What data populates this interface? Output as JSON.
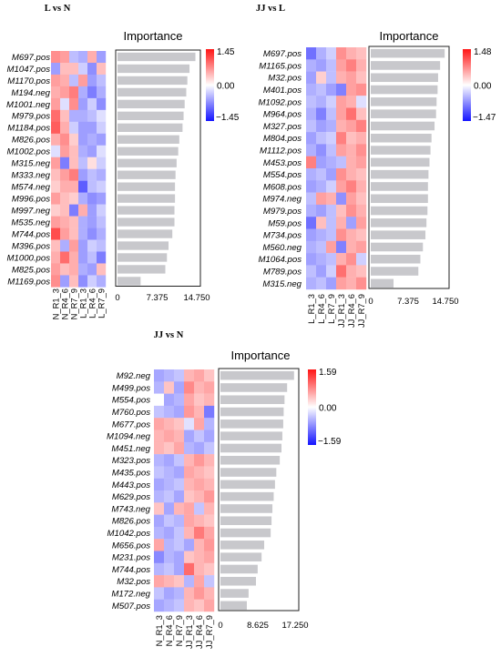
{
  "palette": {
    "neg": "#1414ff",
    "mid": "#ffffff",
    "pos": "#ff1414",
    "bar": "#c8c8cc",
    "frame": "#222222"
  },
  "chart_data": [
    {
      "type": "heatmap",
      "title": "L vs N",
      "importance_label": "Importance",
      "x_ticks": [
        "0",
        "7.375",
        "14.750"
      ],
      "x_max": 14.75,
      "colorbar": {
        "max": 1.45,
        "min": -1.45,
        "labels": [
          "1.45",
          "0.00",
          "−1.45"
        ]
      },
      "samples": [
        "N_R1_3",
        "N_R4_6",
        "N_R7_9",
        "L_R1_3",
        "L_R4_6",
        "L_R7_9"
      ],
      "features": [
        "M697.pos",
        "M1047.pos",
        "M1170.pos",
        "M194.neg",
        "M1001.neg",
        "M979.pos",
        "M1184.pos",
        "M826.pos",
        "M1002.pos",
        "M315.neg",
        "M333.neg",
        "M574.neg",
        "M996.pos",
        "M997.neg",
        "M535.neg",
        "M744.pos",
        "M396.pos",
        "M1000.pos",
        "M825.pos",
        "M1169.pos"
      ],
      "importance": [
        14.5,
        13.4,
        13.0,
        12.8,
        12.5,
        12.3,
        12.1,
        11.5,
        11.3,
        11.0,
        10.8,
        10.7,
        10.7,
        10.6,
        10.6,
        10.2,
        9.5,
        9.2,
        8.9,
        4.3
      ],
      "heat": [
        [
          0.7,
          0.6,
          -0.4,
          -0.5,
          0.5,
          -0.6
        ],
        [
          -0.6,
          0.4,
          0.4,
          -0.3,
          -0.7,
          0.4
        ],
        [
          0.6,
          0.5,
          -0.4,
          0.6,
          -0.6,
          -0.4
        ],
        [
          0.5,
          0.6,
          0.8,
          -0.5,
          -0.8,
          -0.5
        ],
        [
          0.6,
          -0.2,
          0.7,
          -0.6,
          -0.3,
          -0.7
        ],
        [
          0.9,
          0.4,
          -0.5,
          -0.5,
          -0.4,
          -0.2
        ],
        [
          1.0,
          0.5,
          -0.3,
          -0.6,
          -0.6,
          -0.3
        ],
        [
          0.5,
          0.7,
          0.3,
          -0.6,
          -0.5,
          -0.6
        ],
        [
          -0.2,
          0.6,
          0.4,
          -0.5,
          -0.6,
          -0.2
        ],
        [
          0.6,
          -0.8,
          0.4,
          -0.4,
          0.2,
          -0.3
        ],
        [
          0.4,
          0.6,
          0.8,
          -0.6,
          -0.4,
          -0.5
        ],
        [
          0.3,
          0.5,
          0.5,
          -1.0,
          -0.4,
          -0.3
        ],
        [
          0.6,
          0.4,
          0.3,
          -0.5,
          -0.7,
          -0.6
        ],
        [
          0.3,
          0.4,
          -0.8,
          0.5,
          -0.6,
          -0.3
        ],
        [
          0.6,
          0.5,
          0.4,
          -0.5,
          -0.6,
          -0.4
        ],
        [
          1.1,
          0.6,
          0.4,
          -0.5,
          -0.7,
          -0.5
        ],
        [
          0.4,
          -0.5,
          0.6,
          -0.6,
          -0.3,
          -0.4
        ],
        [
          0.5,
          0.9,
          0.5,
          -0.6,
          -0.4,
          -0.8
        ],
        [
          0.6,
          0.4,
          0.5,
          -0.5,
          -0.6,
          0.4
        ],
        [
          0.7,
          -0.6,
          0.4,
          -0.7,
          -0.3,
          -0.5
        ]
      ]
    },
    {
      "type": "heatmap",
      "title": "JJ vs L",
      "importance_label": "Importance",
      "x_ticks": [
        "0",
        "7.375",
        "14.750"
      ],
      "x_max": 14.75,
      "colorbar": {
        "max": 1.48,
        "min": -1.47,
        "labels": [
          "1.48",
          "0.00",
          "−1.47"
        ]
      },
      "samples": [
        "L_R1_3",
        "L_R4_6",
        "L_R7_9",
        "JJ_R1_3",
        "JJ_R4_6",
        "JJ_R7_9"
      ],
      "features": [
        "M697.pos",
        "M1165.pos",
        "M32.pos",
        "M401.pos",
        "M1092.pos",
        "M964.pos",
        "M327.pos",
        "M804.pos",
        "M1112.pos",
        "M453.pos",
        "M554.pos",
        "M608.pos",
        "M974.neg",
        "M979.pos",
        "M59.pos",
        "M734.pos",
        "M560.neg",
        "M1064.pos",
        "M789.pos",
        "M315.neg"
      ],
      "importance": [
        14.6,
        13.7,
        13.3,
        13.2,
        13.0,
        12.9,
        12.6,
        12.0,
        11.8,
        11.6,
        11.4,
        11.3,
        11.3,
        11.2,
        11.0,
        10.8,
        10.3,
        9.8,
        9.4,
        4.5
      ],
      "heat": [
        [
          -0.9,
          -0.5,
          -0.3,
          0.7,
          0.5,
          0.4
        ],
        [
          -0.5,
          -0.6,
          -0.4,
          0.6,
          0.8,
          0.5
        ],
        [
          -0.6,
          0.3,
          -0.4,
          0.5,
          0.6,
          0.4
        ],
        [
          -0.5,
          -0.4,
          -0.6,
          -0.8,
          0.6,
          0.7
        ],
        [
          -0.4,
          -0.5,
          -0.3,
          0.6,
          0.5,
          -0.2
        ],
        [
          -0.5,
          -0.8,
          -0.4,
          0.6,
          0.9,
          0.4
        ],
        [
          -0.4,
          -0.6,
          -0.5,
          0.5,
          0.6,
          0.8
        ],
        [
          -0.6,
          -0.4,
          -0.3,
          0.8,
          0.4,
          0.5
        ],
        [
          -0.5,
          -0.7,
          -0.4,
          0.6,
          0.5,
          0.7
        ],
        [
          0.8,
          -0.6,
          -0.5,
          -0.4,
          0.5,
          0.6
        ],
        [
          -0.5,
          -0.4,
          -0.6,
          0.7,
          0.5,
          0.4
        ],
        [
          -0.6,
          -0.5,
          -0.3,
          0.6,
          0.8,
          0.5
        ],
        [
          -0.4,
          0.6,
          0.5,
          -0.7,
          0.6,
          0.4
        ],
        [
          -0.5,
          -0.6,
          -0.4,
          0.4,
          0.7,
          0.5
        ],
        [
          -0.9,
          0.4,
          -0.4,
          0.5,
          -0.6,
          0.6
        ],
        [
          -0.6,
          -0.5,
          -0.4,
          0.7,
          0.5,
          0.4
        ],
        [
          -0.5,
          -0.4,
          0.6,
          -0.8,
          0.5,
          0.6
        ],
        [
          -0.6,
          -0.5,
          -0.4,
          0.5,
          0.7,
          -0.3
        ],
        [
          -0.4,
          -0.6,
          -0.3,
          0.9,
          0.5,
          0.4
        ],
        [
          -0.5,
          -0.4,
          -0.6,
          0.6,
          0.5,
          0.7
        ]
      ]
    },
    {
      "type": "heatmap",
      "title": "JJ vs N",
      "importance_label": "Importance",
      "x_ticks": [
        "0",
        "8.625",
        "17.250"
      ],
      "x_max": 17.25,
      "colorbar": {
        "max": 1.59,
        "min": -1.59,
        "labels": [
          "1.59",
          "0.00",
          "−1.59"
        ]
      },
      "samples": [
        "N_R1_3",
        "N_R4_6",
        "N_R7_9",
        "JJ_R1_3",
        "JJ_R4_6",
        "JJ_R7_9"
      ],
      "features": [
        "M92.neg",
        "M499.pos",
        "M554.pos",
        "M760.pos",
        "M677.pos",
        "M1094.neg",
        "M451.neg",
        "M323.pos",
        "M435.pos",
        "M443.pos",
        "M629.pos",
        "M743.neg",
        "M826.pos",
        "M1042.pos",
        "M656.pos",
        "M231.pos",
        "M744.pos",
        "M32.pos",
        "M172.neg",
        "M507.pos"
      ],
      "importance": [
        17.0,
        15.4,
        14.8,
        14.6,
        14.5,
        14.3,
        14.1,
        13.7,
        12.9,
        12.6,
        12.3,
        12.0,
        11.8,
        11.6,
        10.1,
        9.5,
        8.6,
        8.2,
        6.5,
        6.1
      ],
      "heat": [
        [
          -0.6,
          -0.5,
          -0.4,
          0.5,
          0.6,
          0.4
        ],
        [
          -0.5,
          0.4,
          -0.6,
          0.8,
          0.5,
          0.6
        ],
        [
          0.0,
          -0.6,
          -0.5,
          0.6,
          0.4,
          0.5
        ],
        [
          -0.4,
          -0.5,
          -0.6,
          0.7,
          0.5,
          -0.9
        ],
        [
          0.6,
          0.5,
          0.4,
          -0.2,
          0.6,
          -0.5
        ],
        [
          0.5,
          0.6,
          0.5,
          -0.6,
          -0.4,
          -0.6
        ],
        [
          0.5,
          0.4,
          0.6,
          -0.5,
          -0.6,
          -0.4
        ],
        [
          -0.5,
          -0.6,
          -0.4,
          0.5,
          0.7,
          0.5
        ],
        [
          -0.4,
          -0.5,
          -0.6,
          0.6,
          0.5,
          0.4
        ],
        [
          -0.6,
          -0.5,
          -0.4,
          0.5,
          0.6,
          0.5
        ],
        [
          -0.5,
          -0.4,
          -0.6,
          0.4,
          0.5,
          0.7
        ],
        [
          0.4,
          -0.6,
          0.5,
          0.6,
          -0.4,
          0.5
        ],
        [
          -0.6,
          -0.4,
          -0.5,
          0.6,
          0.5,
          0.4
        ],
        [
          -0.5,
          -0.6,
          -0.4,
          0.5,
          0.9,
          0.6
        ],
        [
          0.6,
          -0.5,
          -0.4,
          -0.6,
          0.5,
          0.7
        ],
        [
          -0.8,
          -0.5,
          -0.6,
          0.4,
          0.5,
          0.6
        ],
        [
          -0.5,
          -0.4,
          -0.6,
          1.0,
          0.5,
          0.4
        ],
        [
          0.6,
          0.5,
          0.4,
          -0.5,
          0.6,
          -0.4
        ],
        [
          -0.4,
          -0.6,
          -0.5,
          0.5,
          0.7,
          0.5
        ],
        [
          -0.6,
          -0.5,
          -0.4,
          0.5,
          0.4,
          0.6
        ]
      ]
    }
  ]
}
